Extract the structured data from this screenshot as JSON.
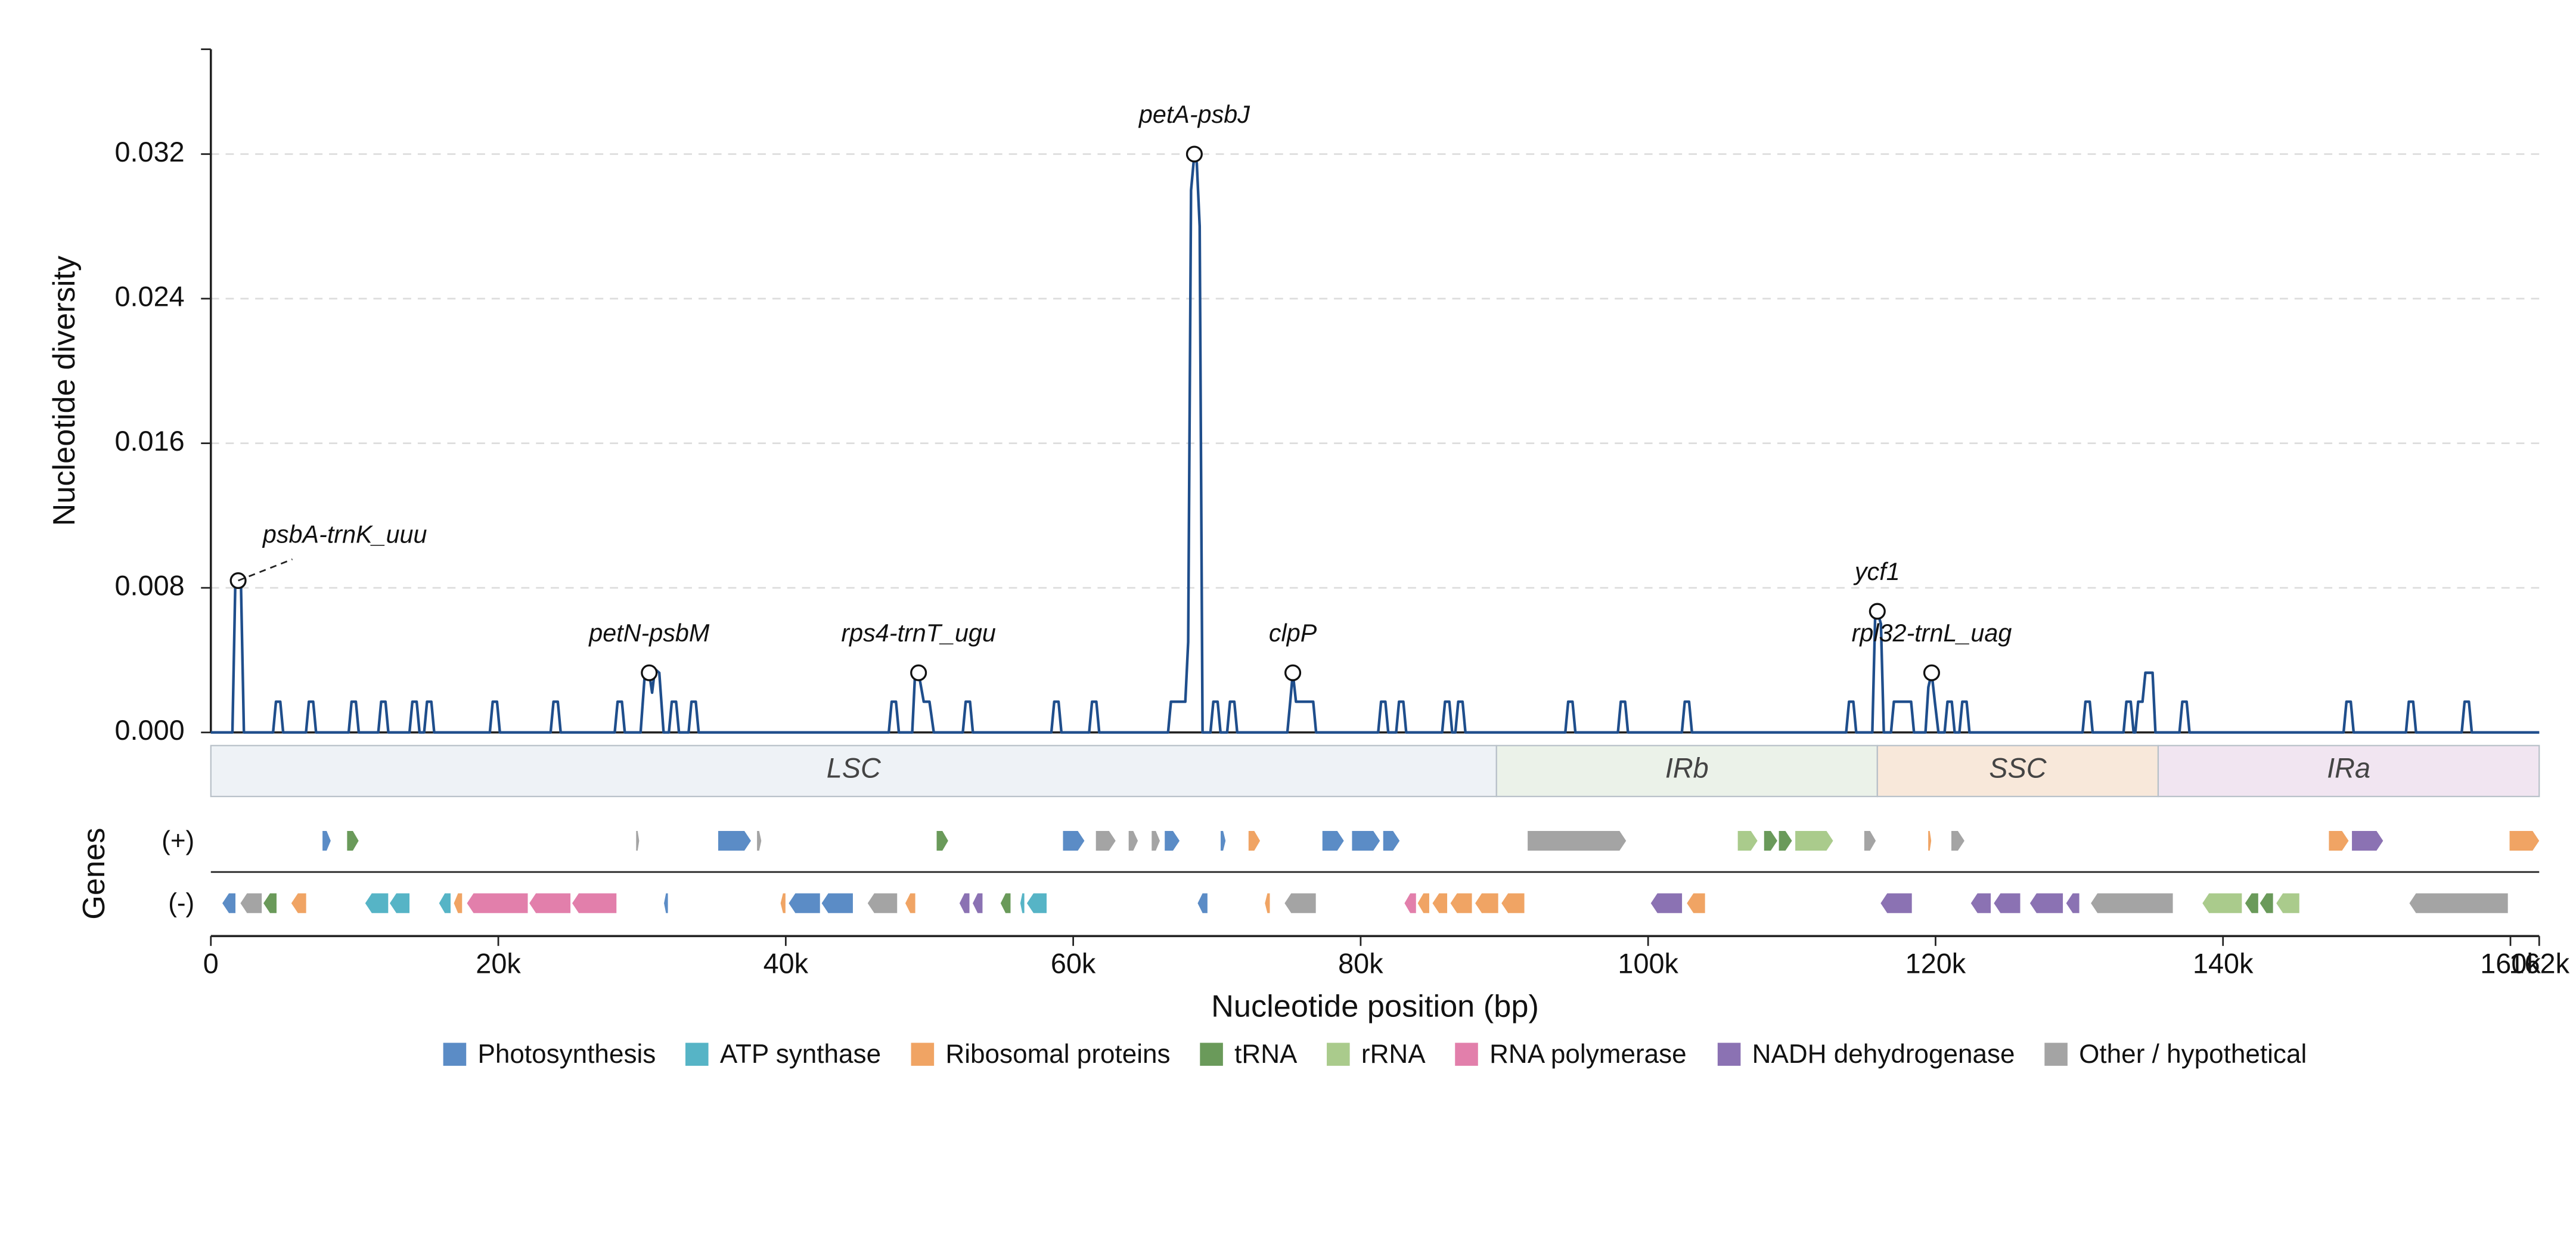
{
  "chart_data": {
    "type": "line",
    "ylabel": "Nucleotide diversity",
    "xlabel": "Nucleotide position (bp)",
    "track_label": "Genes",
    "xlim": [
      0,
      162000
    ],
    "ylim": [
      0,
      0.0378
    ],
    "xticks": [
      {
        "value": 0,
        "label": "0"
      },
      {
        "value": 20000,
        "label": "20k"
      },
      {
        "value": 40000,
        "label": "40k"
      },
      {
        "value": 60000,
        "label": "60k"
      },
      {
        "value": 80000,
        "label": "80k"
      },
      {
        "value": 100000,
        "label": "100k"
      },
      {
        "value": 120000,
        "label": "120k"
      },
      {
        "value": 140000,
        "label": "140k"
      },
      {
        "value": 160000,
        "label": "160k"
      },
      {
        "value": 162000,
        "label": "162k"
      }
    ],
    "yticks": [
      {
        "value": 0,
        "label": "0.000"
      },
      0.008,
      0.016,
      0.024,
      0.032
    ],
    "grid": true,
    "series": [
      {
        "color": "#1f4e8c",
        "x": [
          0,
          1500,
          1700,
          1900,
          2100,
          2300,
          4330,
          4530,
          4830,
          5030,
          6620,
          6820,
          7120,
          7320,
          9590,
          9790,
          10090,
          10290,
          11650,
          11850,
          12150,
          12350,
          13820,
          14020,
          14320,
          14520,
          14840,
          15040,
          15340,
          15540,
          19410,
          19610,
          19910,
          20110,
          23640,
          23840,
          24140,
          24340,
          28100,
          28300,
          28600,
          28800,
          29900,
          30200,
          30500,
          30700,
          30900,
          31200,
          31500,
          31870,
          32070,
          32370,
          32570,
          33240,
          33440,
          33740,
          33940,
          47170,
          47370,
          47670,
          47870,
          48800,
          49000,
          49240,
          49600,
          50000,
          50300,
          52320,
          52520,
          52820,
          53020,
          58480,
          58680,
          58980,
          59180,
          61110,
          61310,
          61610,
          61810,
          66600,
          66800,
          67800,
          68000,
          68200,
          68430,
          68600,
          68800,
          69000,
          69550,
          69750,
          70050,
          70250,
          70710,
          70910,
          71210,
          71410,
          74900,
          75100,
          75280,
          75500,
          76700,
          76900,
          81220,
          81420,
          81720,
          81920,
          82470,
          82670,
          82970,
          83170,
          85670,
          85870,
          86170,
          86370,
          86590,
          86790,
          87090,
          87290,
          94240,
          94440,
          94740,
          94940,
          97900,
          98100,
          98400,
          98600,
          102350,
          102550,
          102850,
          103050,
          113780,
          113980,
          114280,
          114480,
          115600,
          115800,
          115950,
          116200,
          116400,
          116900,
          117100,
          118300,
          118500,
          119300,
          119500,
          119730,
          119950,
          120200,
          120630,
          120830,
          121130,
          121330,
          121660,
          121860,
          122160,
          122360,
          130230,
          130430,
          130730,
          130930,
          133080,
          133280,
          133580,
          133780,
          133900,
          134100,
          134400,
          134600,
          135100,
          135300,
          136970,
          137170,
          137470,
          137670,
          148390,
          148590,
          148890,
          149090,
          152730,
          152930,
          153230,
          153430,
          156610,
          156810,
          157110,
          157310,
          162000
        ],
        "values": [
          0,
          0,
          0.0082,
          0.0084,
          0.008,
          0,
          0,
          0.0017,
          0.0017,
          0,
          0,
          0.0017,
          0.0017,
          0,
          0,
          0.0017,
          0.0017,
          0,
          0,
          0.0017,
          0.0017,
          0,
          0,
          0.0017,
          0.0017,
          0,
          0,
          0.0017,
          0.0017,
          0,
          0,
          0.0017,
          0.0017,
          0,
          0,
          0.0017,
          0.0017,
          0,
          0,
          0.0017,
          0.0017,
          0,
          0,
          0.0033,
          0.0033,
          0.0022,
          0.0035,
          0.0033,
          0,
          0,
          0.0017,
          0.0017,
          0,
          0,
          0.0017,
          0.0017,
          0,
          0,
          0.0017,
          0.0017,
          0,
          0,
          0.0033,
          0.0033,
          0.0017,
          0.0017,
          0,
          0,
          0.0017,
          0.0017,
          0,
          0,
          0.0017,
          0.0017,
          0,
          0,
          0.0017,
          0.0017,
          0,
          0,
          0.0017,
          0.0017,
          0.005,
          0.03,
          0.032,
          0.0315,
          0.028,
          0,
          0,
          0.0017,
          0.0017,
          0,
          0,
          0.0017,
          0.0017,
          0,
          0,
          0.0017,
          0.0033,
          0.0017,
          0.0017,
          0,
          0,
          0.0017,
          0.0017,
          0,
          0,
          0.0017,
          0.0017,
          0,
          0,
          0.0017,
          0.0017,
          0,
          0,
          0.0017,
          0.0017,
          0,
          0,
          0.0017,
          0.0017,
          0,
          0,
          0.0017,
          0.0017,
          0,
          0,
          0.0017,
          0.0017,
          0,
          0,
          0.0017,
          0.0017,
          0,
          0,
          0.0065,
          0.0067,
          0.006,
          0,
          0,
          0.0017,
          0.0017,
          0,
          0,
          0.0025,
          0.0033,
          0.0017,
          0,
          0,
          0.0017,
          0.0017,
          0,
          0,
          0.0017,
          0.0017,
          0,
          0,
          0.0017,
          0.0017,
          0,
          0,
          0.0017,
          0.0017,
          0,
          0,
          0.0017,
          0.0017,
          0.0033,
          0.0033,
          0,
          0,
          0.0017,
          0.0017,
          0,
          0,
          0.0017,
          0.0017,
          0,
          0,
          0.0017,
          0.0017,
          0,
          0,
          0.0017,
          0.0017,
          0,
          0
        ]
      }
    ],
    "annotations": [
      {
        "text": "psbA-trnK_uuu",
        "x": 1900,
        "y": 0.0084
      },
      {
        "text": "petN-psbM",
        "x": 30500,
        "y": 0.0033
      },
      {
        "text": "rps4-trnT_ugu",
        "x": 49240,
        "y": 0.0033
      },
      {
        "text": "petA-psbJ",
        "x": 68430,
        "y": 0.032
      },
      {
        "text": "clpP",
        "x": 75280,
        "y": 0.0033
      },
      {
        "text": "ycf1",
        "x": 115950,
        "y": 0.0067
      },
      {
        "text": "rpl32-trnL_uag",
        "x": 119730,
        "y": 0.0033
      }
    ],
    "regions": [
      {
        "name": "LSC",
        "start": 0,
        "end": 89450,
        "color": "#eef2f6"
      },
      {
        "name": "IRb",
        "start": 89450,
        "end": 115950,
        "color": "#ebf2e9"
      },
      {
        "name": "SSC",
        "start": 115950,
        "end": 135490,
        "color": "#f8e8da"
      },
      {
        "name": "IRa",
        "start": 135490,
        "end": 162000,
        "color": "#f1e5f1"
      }
    ],
    "tracks": [
      "(+)",
      "(-)"
    ],
    "legend": [
      {
        "name": "Photosynthesis",
        "color": "#5b8cc6"
      },
      {
        "name": "ATP synthase",
        "color": "#56b4c6"
      },
      {
        "name": "Ribosomal proteins",
        "color": "#f0a464"
      },
      {
        "name": "tRNA",
        "color": "#6a9a5a"
      },
      {
        "name": "rRNA",
        "color": "#aacb8c"
      },
      {
        "name": "RNA polymerase",
        "color": "#e27fab"
      },
      {
        "name": "NADH dehydrogenase",
        "color": "#8b72b3"
      },
      {
        "name": "Other / hypothetical",
        "color": "#a4a4a4"
      }
    ],
    "genes": [
      {
        "track": 0,
        "group": 0,
        "start": 7770,
        "end": 8340
      },
      {
        "track": 0,
        "group": 3,
        "start": 9480,
        "end": 10280
      },
      {
        "track": 0,
        "group": 7,
        "start": 29590,
        "end": 29800
      },
      {
        "track": 0,
        "group": 0,
        "start": 35300,
        "end": 37580
      },
      {
        "track": 0,
        "group": 7,
        "start": 38000,
        "end": 38300
      },
      {
        "track": 0,
        "group": 3,
        "start": 50500,
        "end": 51300
      },
      {
        "track": 0,
        "group": 0,
        "start": 59290,
        "end": 60780
      },
      {
        "track": 0,
        "group": 7,
        "start": 61580,
        "end": 62950
      },
      {
        "track": 0,
        "group": 7,
        "start": 63860,
        "end": 64500
      },
      {
        "track": 0,
        "group": 7,
        "start": 65460,
        "end": 66030
      },
      {
        "track": 0,
        "group": 0,
        "start": 66370,
        "end": 67400
      },
      {
        "track": 0,
        "group": 0,
        "start": 70260,
        "end": 70600
      },
      {
        "track": 0,
        "group": 2,
        "start": 72200,
        "end": 73000
      },
      {
        "track": 0,
        "group": 0,
        "start": 77340,
        "end": 78830
      },
      {
        "track": 0,
        "group": 0,
        "start": 79400,
        "end": 81340
      },
      {
        "track": 0,
        "group": 0,
        "start": 81570,
        "end": 82710
      },
      {
        "track": 0,
        "group": 7,
        "start": 91620,
        "end": 98470
      },
      {
        "track": 0,
        "group": 4,
        "start": 106240,
        "end": 107610
      },
      {
        "track": 0,
        "group": 3,
        "start": 108070,
        "end": 108990
      },
      {
        "track": 0,
        "group": 3,
        "start": 109100,
        "end": 110010
      },
      {
        "track": 0,
        "group": 4,
        "start": 110240,
        "end": 112870
      },
      {
        "track": 0,
        "group": 7,
        "start": 115040,
        "end": 115840
      },
      {
        "track": 0,
        "group": 2,
        "start": 119490,
        "end": 119700
      },
      {
        "track": 0,
        "group": 7,
        "start": 121100,
        "end": 122010
      },
      {
        "track": 0,
        "group": 2,
        "start": 147370,
        "end": 148740
      },
      {
        "track": 0,
        "group": 6,
        "start": 148970,
        "end": 151140
      },
      {
        "track": 0,
        "group": 2,
        "start": 159940,
        "end": 162000
      },
      {
        "track": 1,
        "group": 0,
        "start": 800,
        "end": 1710
      },
      {
        "track": 1,
        "group": 7,
        "start": 2060,
        "end": 3540
      },
      {
        "track": 1,
        "group": 3,
        "start": 3660,
        "end": 4570
      },
      {
        "track": 1,
        "group": 2,
        "start": 5600,
        "end": 6630
      },
      {
        "track": 1,
        "group": 1,
        "start": 10740,
        "end": 12340
      },
      {
        "track": 1,
        "group": 1,
        "start": 12450,
        "end": 13820
      },
      {
        "track": 1,
        "group": 1,
        "start": 15880,
        "end": 16680
      },
      {
        "track": 1,
        "group": 2,
        "start": 16910,
        "end": 17480
      },
      {
        "track": 1,
        "group": 5,
        "start": 17820,
        "end": 22050
      },
      {
        "track": 1,
        "group": 5,
        "start": 22160,
        "end": 25020
      },
      {
        "track": 1,
        "group": 5,
        "start": 25140,
        "end": 28220
      },
      {
        "track": 1,
        "group": 0,
        "start": 31530,
        "end": 31800
      },
      {
        "track": 1,
        "group": 2,
        "start": 39640,
        "end": 39980
      },
      {
        "track": 1,
        "group": 0,
        "start": 40210,
        "end": 42380
      },
      {
        "track": 1,
        "group": 0,
        "start": 42500,
        "end": 44670
      },
      {
        "track": 1,
        "group": 7,
        "start": 45700,
        "end": 47750
      },
      {
        "track": 1,
        "group": 2,
        "start": 48320,
        "end": 49010
      },
      {
        "track": 1,
        "group": 6,
        "start": 52090,
        "end": 52780
      },
      {
        "track": 1,
        "group": 6,
        "start": 53010,
        "end": 53690
      },
      {
        "track": 1,
        "group": 3,
        "start": 54950,
        "end": 55640
      },
      {
        "track": 1,
        "group": 1,
        "start": 56320,
        "end": 56600
      },
      {
        "track": 1,
        "group": 1,
        "start": 56780,
        "end": 58150
      },
      {
        "track": 1,
        "group": 0,
        "start": 68660,
        "end": 69340
      },
      {
        "track": 1,
        "group": 2,
        "start": 73340,
        "end": 73680
      },
      {
        "track": 1,
        "group": 7,
        "start": 74710,
        "end": 76880
      },
      {
        "track": 1,
        "group": 5,
        "start": 83050,
        "end": 83850
      },
      {
        "track": 1,
        "group": 2,
        "start": 83970,
        "end": 84770
      },
      {
        "track": 1,
        "group": 2,
        "start": 85000,
        "end": 86020
      },
      {
        "track": 1,
        "group": 2,
        "start": 86250,
        "end": 87740
      },
      {
        "track": 1,
        "group": 2,
        "start": 87970,
        "end": 89570
      },
      {
        "track": 1,
        "group": 2,
        "start": 89800,
        "end": 91390
      },
      {
        "track": 1,
        "group": 6,
        "start": 100190,
        "end": 102360
      },
      {
        "track": 1,
        "group": 2,
        "start": 102700,
        "end": 103960
      },
      {
        "track": 1,
        "group": 6,
        "start": 116180,
        "end": 118350
      },
      {
        "track": 1,
        "group": 6,
        "start": 122460,
        "end": 123840
      },
      {
        "track": 1,
        "group": 6,
        "start": 124060,
        "end": 125890
      },
      {
        "track": 1,
        "group": 6,
        "start": 126570,
        "end": 128860
      },
      {
        "track": 1,
        "group": 6,
        "start": 129090,
        "end": 130000
      },
      {
        "track": 1,
        "group": 7,
        "start": 130810,
        "end": 136510
      },
      {
        "track": 1,
        "group": 4,
        "start": 138570,
        "end": 141310
      },
      {
        "track": 1,
        "group": 3,
        "start": 141540,
        "end": 142450
      },
      {
        "track": 1,
        "group": 3,
        "start": 142570,
        "end": 143480
      },
      {
        "track": 1,
        "group": 4,
        "start": 143710,
        "end": 145310
      },
      {
        "track": 1,
        "group": 7,
        "start": 152970,
        "end": 159820
      }
    ]
  }
}
